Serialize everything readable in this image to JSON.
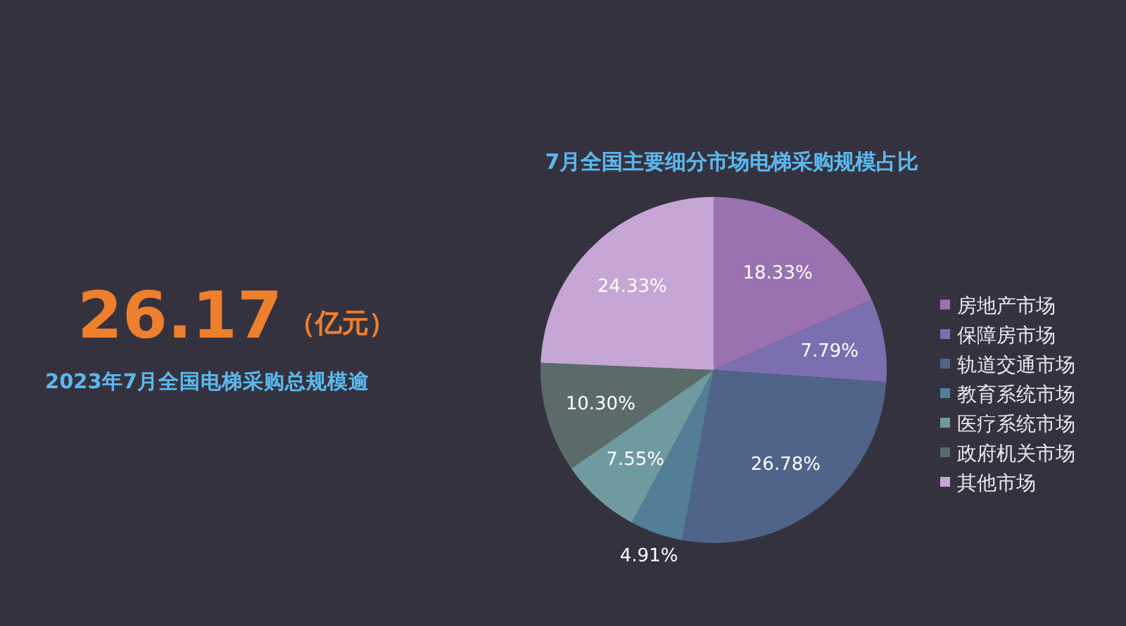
{
  "chart_data": [
    {
      "type": "other",
      "annotations": [
        "26.17",
        "（亿元）",
        "2023年7月全国电梯采购总规模逾"
      ]
    },
    {
      "type": "pie",
      "title": "7月全国主要细分市场电梯采购规模占比",
      "legend": "right",
      "categories": [
        "房地产市场",
        "保障房市场",
        "轨道交通市场",
        "教育系统市场",
        "医疗系统市场",
        "政府机关市场",
        "其他市场"
      ],
      "values": [
        18.33,
        7.79,
        26.78,
        4.91,
        7.55,
        10.3,
        24.33
      ],
      "colors": [
        "#9b72b0",
        "#7b6fb0",
        "#4f6488",
        "#527e96",
        "#6f9aa0",
        "#5a6b6a",
        "#c5a6d4"
      ],
      "value_labels": [
        "18.33%",
        "7.79%",
        "26.78%",
        "4.91%",
        "7.55%",
        "10.30%",
        "24.33%"
      ]
    }
  ]
}
